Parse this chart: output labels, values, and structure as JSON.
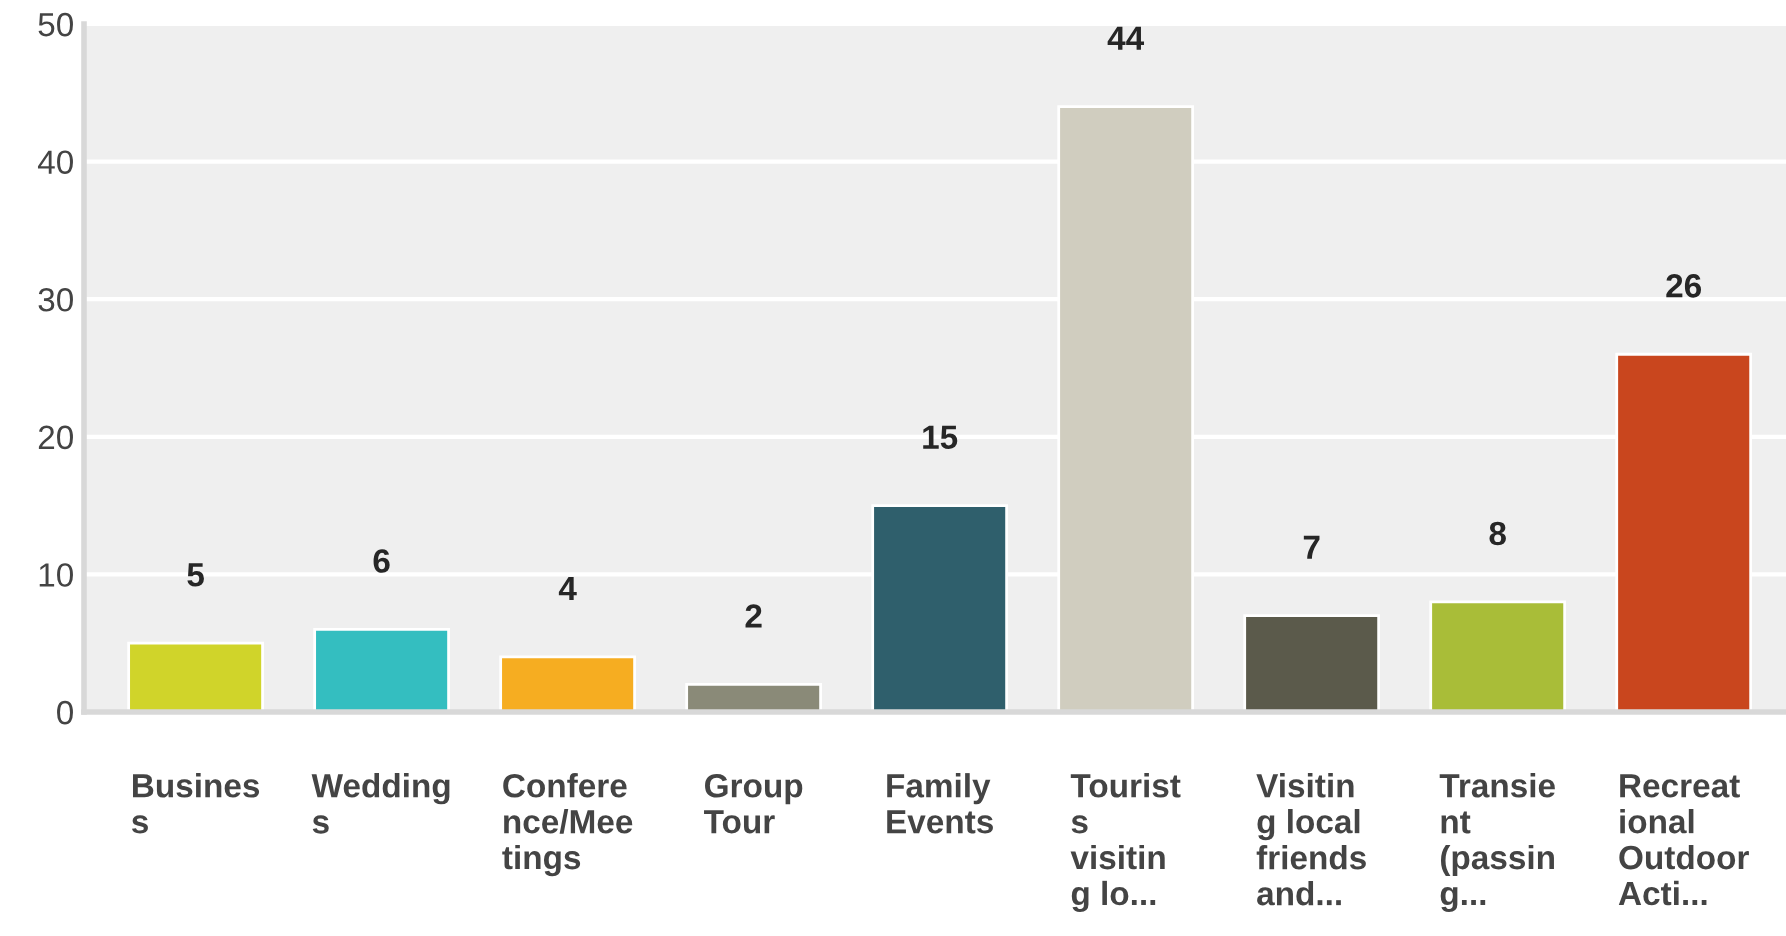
{
  "chart_data": {
    "type": "bar",
    "categories": [
      "Busines\ns",
      "Wedding\ns",
      "Confere\nnce/Mee\ntings",
      "Group\nTour",
      "Family\nEvents",
      "Tourist\ns\nvisitin\ng lo...",
      "Visitin\ng local\nfriends\nand...",
      "Transie\nnt\n(passin\ng...",
      "Recreat\nional\nOutdoor\nActi..."
    ],
    "values": [
      5,
      6,
      4,
      2,
      15,
      44,
      7,
      8,
      26
    ],
    "colors": [
      "#d0d42a",
      "#34bec0",
      "#f6ad21",
      "#8a8a78",
      "#2f5f6c",
      "#d0cdbf",
      "#5b5a4b",
      "#a9bd38",
      "#c9461e"
    ],
    "ylim": [
      0,
      50
    ],
    "yticks": [
      0,
      10,
      20,
      30,
      40,
      50
    ],
    "grid": "y",
    "data_labels": true
  }
}
